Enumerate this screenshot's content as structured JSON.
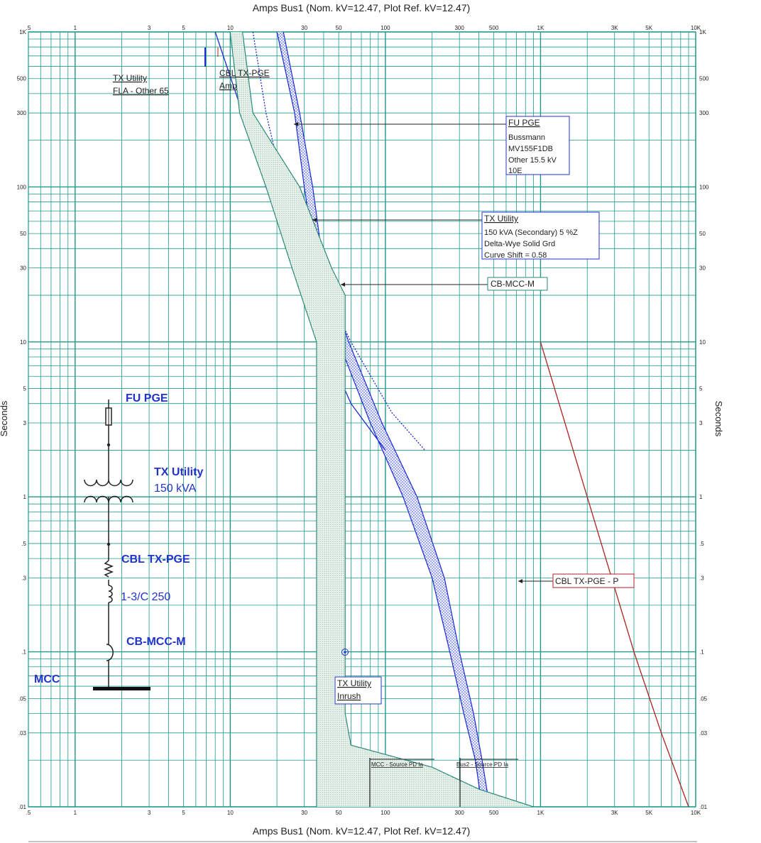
{
  "header": {
    "top_title": "Amps   Bus1 (Nom. kV=12.47, Plot Ref. kV=12.47)",
    "bottom_title": "Amps   Bus1 (Nom. kV=12.47, Plot Ref. kV=12.47)",
    "y_label_left": "Seconds",
    "y_label_right": "Seconds"
  },
  "chart_data": {
    "type": "line",
    "title": "Amps   Bus1 (Nom. kV=12.47, Plot Ref. kV=12.47)",
    "xlabel": "Amps   Bus1 (Nom. kV=12.47, Plot Ref. kV=12.47)",
    "ylabel": "Seconds",
    "x_scale": "log",
    "y_scale": "log",
    "xlim": [
      0.5,
      10000
    ],
    "ylim": [
      0.01,
      1000
    ],
    "grid": true,
    "x_tick_labels": [
      {
        "v": 0.5,
        "t": ".5"
      },
      {
        "v": 1,
        "t": "1"
      },
      {
        "v": 3,
        "t": "3"
      },
      {
        "v": 5,
        "t": "5"
      },
      {
        "v": 10,
        "t": "10"
      },
      {
        "v": 30,
        "t": "30"
      },
      {
        "v": 50,
        "t": "50"
      },
      {
        "v": 100,
        "t": "100"
      },
      {
        "v": 300,
        "t": "300"
      },
      {
        "v": 500,
        "t": "500"
      },
      {
        "v": 1000,
        "t": "1K"
      },
      {
        "v": 3000,
        "t": "3K"
      },
      {
        "v": 5000,
        "t": "5K"
      },
      {
        "v": 10000,
        "t": "10K"
      }
    ],
    "y_tick_labels": [
      {
        "v": 0.01,
        "t": ".01"
      },
      {
        "v": 0.03,
        "t": ".03"
      },
      {
        "v": 0.05,
        "t": ".05"
      },
      {
        "v": 0.1,
        "t": ".1"
      },
      {
        "v": 0.3,
        "t": ".3"
      },
      {
        "v": 0.5,
        "t": ".5"
      },
      {
        "v": 1,
        "t": "1"
      },
      {
        "v": 3,
        "t": "3"
      },
      {
        "v": 5,
        "t": "5"
      },
      {
        "v": 10,
        "t": "10"
      },
      {
        "v": 30,
        "t": "30"
      },
      {
        "v": 50,
        "t": "50"
      },
      {
        "v": 100,
        "t": "100"
      },
      {
        "v": 300,
        "t": "300"
      },
      {
        "v": 500,
        "t": "500"
      },
      {
        "v": 1000,
        "t": "1K"
      }
    ],
    "series": [
      {
        "name": "FU PGE",
        "color": "#1a2bd6",
        "band": true,
        "min": [
          [
            20,
            1000
          ],
          [
            26,
            300
          ],
          [
            30,
            100
          ],
          [
            36,
            30
          ],
          [
            50,
            10
          ],
          [
            80,
            3
          ],
          [
            130,
            1
          ],
          [
            200,
            0.3
          ],
          [
            260,
            0.1
          ],
          [
            320,
            0.04
          ],
          [
            380,
            0.02
          ],
          [
            420,
            0.01
          ]
        ],
        "max": [
          [
            22,
            1000
          ],
          [
            28,
            300
          ],
          [
            34,
            100
          ],
          [
            40,
            30
          ],
          [
            58,
            10
          ],
          [
            95,
            3
          ],
          [
            160,
            1
          ],
          [
            240,
            0.3
          ],
          [
            300,
            0.1
          ],
          [
            370,
            0.04
          ],
          [
            420,
            0.02
          ],
          [
            470,
            0.01
          ]
        ]
      },
      {
        "name": "TX Utility",
        "color": "#1a2bd6",
        "band": false,
        "curve": [
          [
            8,
            1000
          ],
          [
            12,
            300
          ],
          [
            17,
            100
          ],
          [
            26,
            30
          ],
          [
            40,
            10
          ],
          [
            60,
            4
          ],
          [
            100,
            2
          ]
        ]
      },
      {
        "name": "TX Utility dotted",
        "color": "#1a2bd6",
        "band": false,
        "dotted": true,
        "curve": [
          [
            14,
            1000
          ],
          [
            17,
            300
          ],
          [
            22,
            100
          ],
          [
            35,
            30
          ],
          [
            60,
            10
          ],
          [
            110,
            3.5
          ],
          [
            180,
            2
          ]
        ]
      },
      {
        "name": "CB-MCC-M",
        "color": "#2a8a7a",
        "band": true,
        "min": [
          [
            10,
            1000
          ],
          [
            11.5,
            300
          ],
          [
            17,
            100
          ],
          [
            25,
            30
          ],
          [
            36,
            10
          ],
          [
            36,
            1
          ],
          [
            36,
            0.1
          ],
          [
            36,
            0.01
          ]
        ],
        "max": [
          [
            12,
            1000
          ],
          [
            14,
            300
          ],
          [
            28,
            100
          ],
          [
            45,
            30
          ],
          [
            55,
            20
          ],
          [
            55,
            1
          ],
          [
            55,
            0.1
          ],
          [
            55,
            0.04
          ],
          [
            60,
            0.025
          ],
          [
            200,
            0.018
          ],
          [
            400,
            0.013
          ],
          [
            900,
            0.01
          ]
        ]
      },
      {
        "name": "CBL TX-PGE - P",
        "color": "#b02020",
        "band": false,
        "curve": [
          [
            1000,
            10
          ],
          [
            2000,
            1
          ],
          [
            4000,
            0.1
          ],
          [
            6000,
            0.03
          ],
          [
            9000,
            0.01
          ]
        ]
      }
    ],
    "annotations": [
      {
        "text": [
          "FU PGE",
          "Bussmann",
          "MV155F1DB",
          "Other  15.5 kV",
          "10E"
        ]
      },
      {
        "text": [
          "TX Utility",
          "150 kVA (Secondary)  5 %Z",
          "Delta-Wye Solid Grd",
          "Curve Shift = 0.58"
        ]
      },
      {
        "text": [
          "CB-MCC-M"
        ]
      },
      {
        "text": [
          "CBL TX-PGE - P"
        ]
      },
      {
        "text": [
          "TX Utility",
          "Inrush"
        ]
      },
      {
        "text": [
          "TX Utility",
          "FLA - Other 65"
        ]
      },
      {
        "text": [
          "CBL TX-PGE",
          "Amp"
        ]
      },
      {
        "text": [
          "MCC - Source PD Ia"
        ]
      },
      {
        "text": [
          "Bus2 - Source PD Ia"
        ]
      }
    ]
  },
  "oneline": {
    "fuse_label": "FU PGE",
    "tx_label": "TX Utility",
    "tx_rating": "150 kVA",
    "cable_label": "CBL TX-PGE",
    "cable_size": "1-3/C 250",
    "breaker_label": "CB-MCC-M",
    "bus_label": "MCC"
  }
}
